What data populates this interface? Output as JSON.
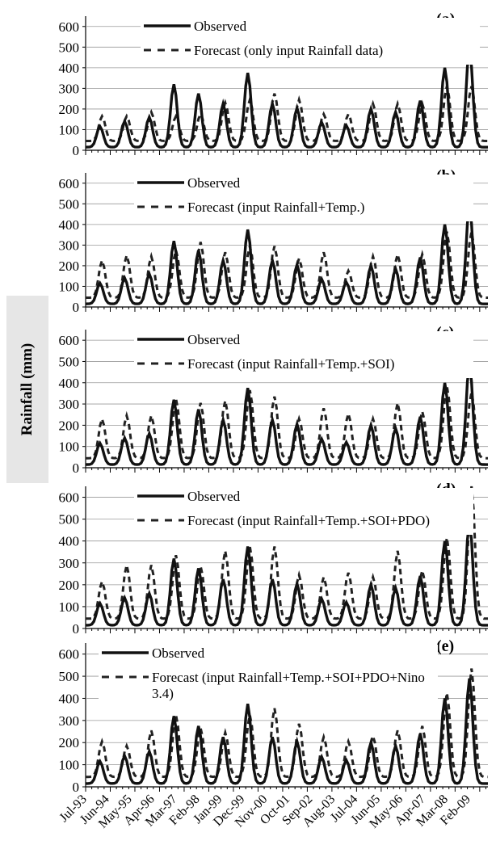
{
  "ylabel": "Rainfall (mm)",
  "x_tick_labels": [
    "Jul-93",
    "Jun-94",
    "May-95",
    "Apr-96",
    "Mar-97",
    "Feb-98",
    "Jan-99",
    "Dec-99",
    "Nov-00",
    "Oct-01",
    "Sep-02",
    "Aug-03",
    "Jul-04",
    "Jun-05",
    "May-06",
    "Apr-07",
    "Mar-08",
    "Feb-09"
  ],
  "y_ticks": [
    0,
    100,
    200,
    300,
    400,
    500,
    600
  ],
  "ylim": [
    0,
    650
  ],
  "panels": [
    {
      "tag": "(a)",
      "legend_observed": "Observed",
      "legend_forecast": "Forecast (only input Rainfall data)"
    },
    {
      "tag": "(b)",
      "legend_observed": "Observed",
      "legend_forecast": "Forecast (input Rainfall+Temp.)"
    },
    {
      "tag": "(c)",
      "legend_observed": "Observed",
      "legend_forecast": "Forecast (input Rainfall+Temp.+SOI)"
    },
    {
      "tag": "(d)",
      "legend_observed": "Observed",
      "legend_forecast": "Forecast (input Rainfall+Temp.+SOI+PDO)"
    },
    {
      "tag": "(e)",
      "legend_observed": "Observed",
      "legend_forecast_line1": "Forecast (input Rainfall+Temp.+SOI+PDO+Nino",
      "legend_forecast_line2": "3.4)"
    }
  ],
  "chart_data": {
    "type": "line",
    "x": [
      "Jul-93",
      "Jun-94",
      "May-95",
      "Apr-96",
      "Mar-97",
      "Feb-98",
      "Jan-99",
      "Dec-99",
      "Nov-00",
      "Oct-01",
      "Sep-02",
      "Aug-03",
      "Jul-04",
      "Jun-05",
      "May-06",
      "Apr-07",
      "Mar-08",
      "Feb-09"
    ],
    "observed_peaks": [
      100,
      125,
      145,
      305,
      260,
      210,
      360,
      210,
      190,
      120,
      105,
      185,
      170,
      225,
      385,
      475
    ],
    "forecast_peaks": [
      {
        "panel": "(a)",
        "values": [
          120,
          120,
          140,
          120,
          130,
          185,
          200,
          230,
          200,
          130,
          130,
          180,
          180,
          180,
          265,
          265
        ]
      },
      {
        "panel": "(b)",
        "values": [
          180,
          205,
          200,
          230,
          270,
          220,
          250,
          250,
          190,
          220,
          130,
          200,
          210,
          210,
          320,
          320
        ]
      },
      {
        "panel": "(c)",
        "values": [
          185,
          200,
          200,
          280,
          260,
          270,
          320,
          290,
          185,
          235,
          210,
          185,
          260,
          220,
          340,
          310
        ]
      },
      {
        "panel": "(d)",
        "values": [
          170,
          245,
          245,
          290,
          240,
          310,
          330,
          330,
          200,
          190,
          210,
          190,
          310,
          220,
          370,
          610
        ]
      },
      {
        "panel": "(e)",
        "values": [
          160,
          140,
          210,
          280,
          220,
          200,
          280,
          310,
          240,
          180,
          160,
          185,
          210,
          230,
          380,
          490
        ]
      }
    ],
    "ylabel": "Rainfall (mm)",
    "ylim": [
      0,
      650
    ]
  }
}
